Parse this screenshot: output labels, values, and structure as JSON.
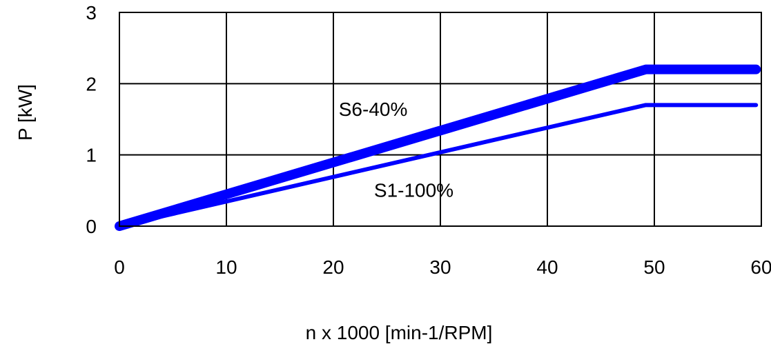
{
  "chart_data": {
    "type": "line",
    "title": "",
    "xlabel": "n x 1000 [min-1/RPM]",
    "ylabel": "P [kW]",
    "xlim": [
      0,
      60
    ],
    "ylim": [
      0,
      3
    ],
    "xticks": [
      "0",
      "10",
      "20",
      "30",
      "40",
      "50",
      "60"
    ],
    "yticks": [
      "0",
      "1",
      "2",
      "3"
    ],
    "grid": true,
    "series": [
      {
        "name": "S6-40%",
        "color": "#0000ff",
        "x": [
          0,
          49.2,
          59.5
        ],
        "y": [
          0,
          2.2,
          2.2
        ]
      },
      {
        "name": "S1-100%",
        "color": "#0000ff",
        "x": [
          0,
          49.2,
          59.5
        ],
        "y": [
          0,
          1.7,
          1.7
        ]
      }
    ],
    "annotations": [
      {
        "text": "S6-40%",
        "x": 20.5,
        "y": 1.55
      },
      {
        "text": "S1-100%",
        "x": 23.8,
        "y": 0.41
      }
    ]
  }
}
